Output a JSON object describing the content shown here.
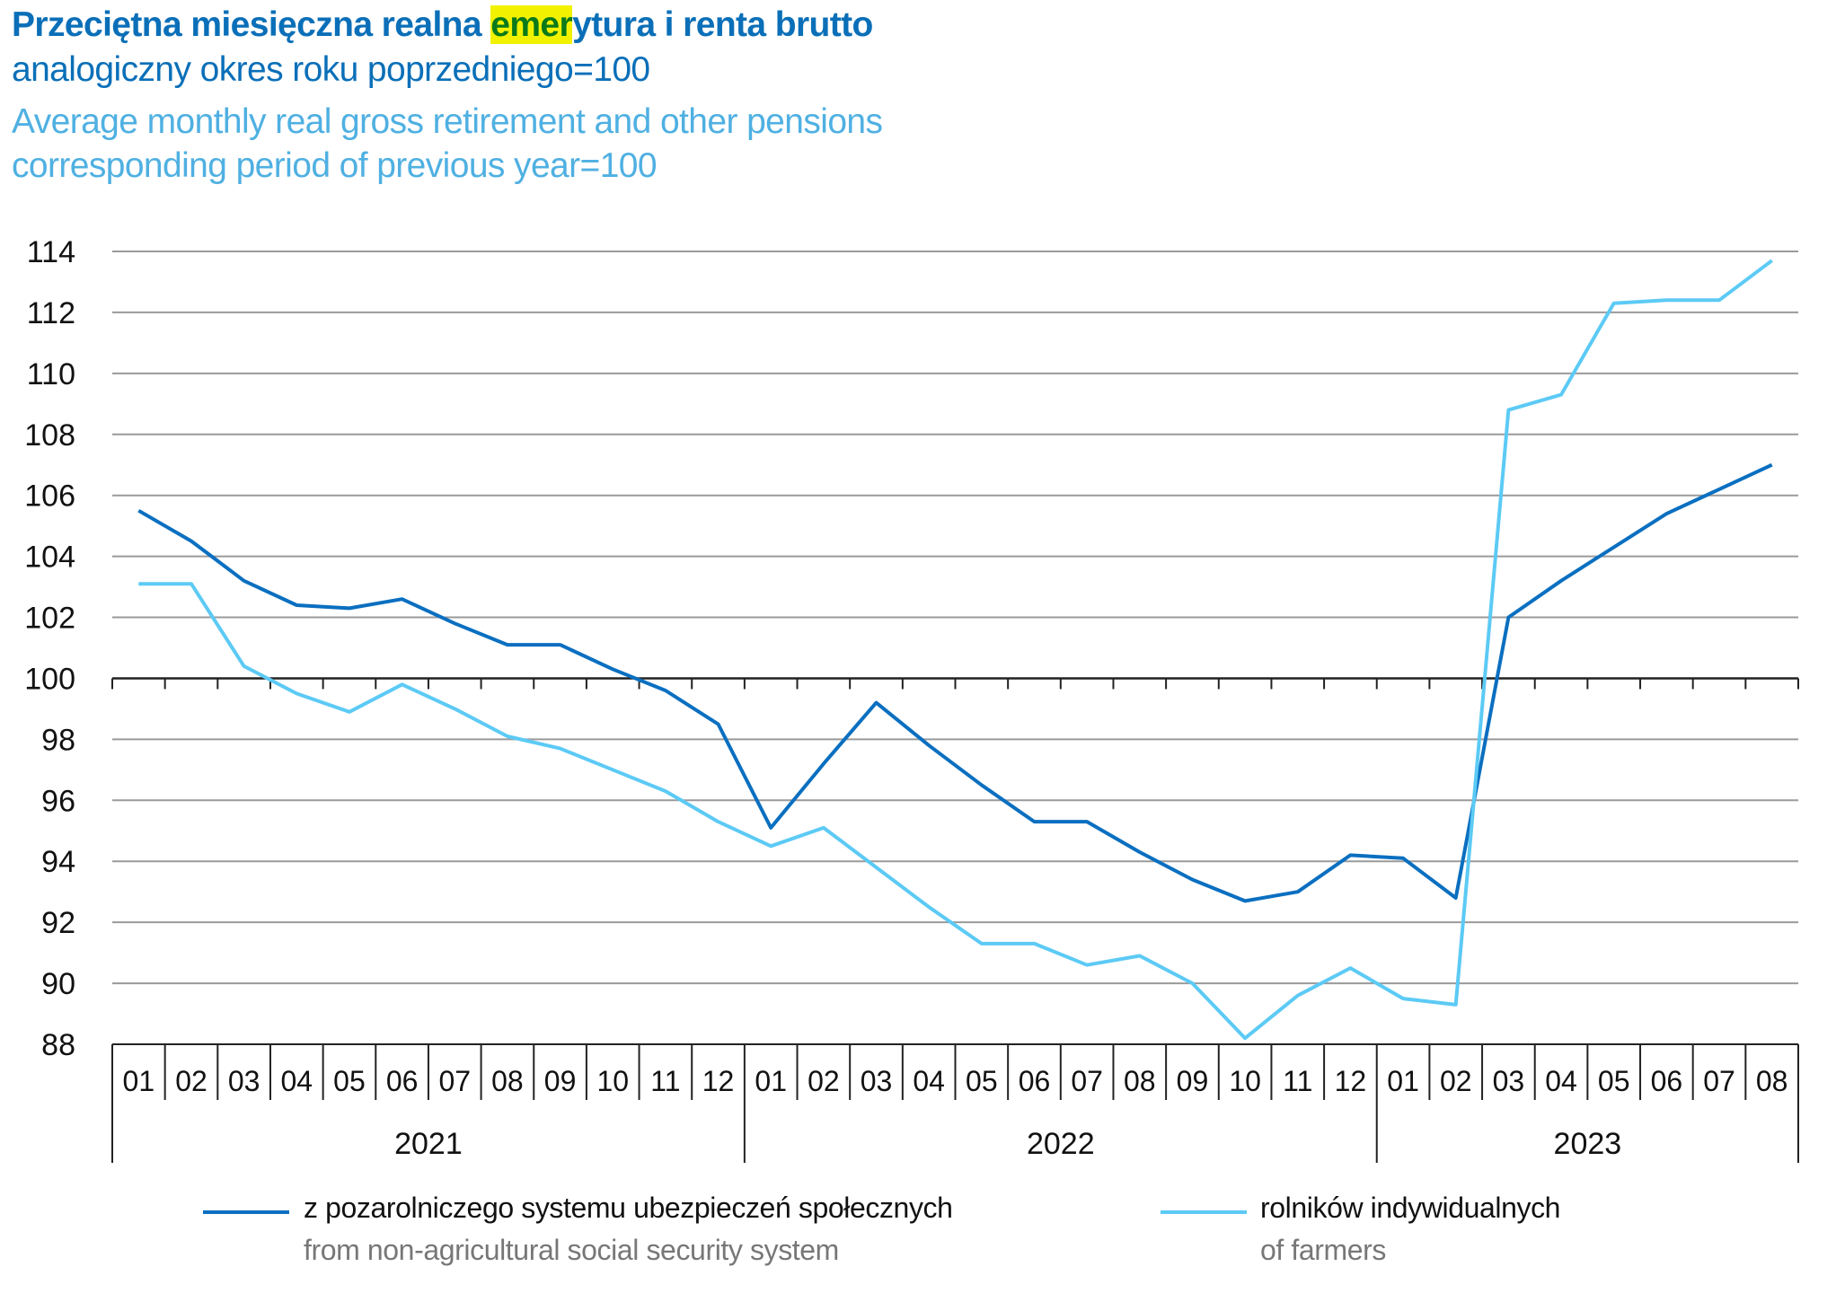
{
  "header": {
    "title_parts": [
      "Przeciętna miesięczna realna ",
      "emer",
      "ytura i renta brutto"
    ],
    "subtitle_pl": "analogiczny okres roku poprzedniego=100",
    "title_en": "Average monthly real gross retirement and other pensions",
    "subtitle_en": "corresponding period of previous year=100",
    "highlight_color": "#f2f200"
  },
  "chart_data": {
    "type": "line",
    "title": "Przeciętna miesięczna realna emerytura i renta brutto",
    "subtitle": "analogiczny okres roku poprzedniego=100",
    "ylim": [
      88,
      114
    ],
    "yticks": [
      88,
      90,
      92,
      94,
      96,
      98,
      100,
      102,
      104,
      106,
      108,
      110,
      112,
      114
    ],
    "baseline": 100,
    "grid": true,
    "legend_position": "bottom",
    "categories": [
      "01",
      "02",
      "03",
      "04",
      "05",
      "06",
      "07",
      "08",
      "09",
      "10",
      "11",
      "12",
      "01",
      "02",
      "03",
      "04",
      "05",
      "06",
      "07",
      "08",
      "09",
      "10",
      "11",
      "12",
      "01",
      "02",
      "03",
      "04",
      "05",
      "06",
      "07",
      "08"
    ],
    "years": [
      {
        "label": "2021",
        "months": 12
      },
      {
        "label": "2022",
        "months": 12
      },
      {
        "label": "2023",
        "months": 8
      }
    ],
    "series": [
      {
        "name": "z pozarolniczego systemu ubezpieczeń społecznych",
        "name_en": "from non-agricultural social security system",
        "color": "#0a6fc0",
        "values": [
          105.5,
          104.5,
          103.2,
          102.4,
          102.3,
          102.6,
          101.8,
          101.1,
          101.1,
          100.3,
          99.6,
          98.5,
          95.1,
          97.2,
          99.2,
          97.8,
          96.5,
          95.3,
          95.3,
          94.3,
          93.4,
          92.7,
          93.0,
          94.2,
          94.1,
          92.8,
          102.0,
          103.2,
          104.3,
          105.4,
          106.2,
          107.0
        ]
      },
      {
        "name": "rolników indywidualnych",
        "name_en": "of farmers",
        "color": "#5ccaf5",
        "values": [
          103.1,
          103.1,
          100.4,
          99.5,
          98.9,
          99.8,
          99.0,
          98.1,
          97.7,
          97.0,
          96.3,
          95.3,
          94.5,
          95.1,
          93.8,
          92.5,
          91.3,
          91.3,
          90.6,
          90.9,
          90.0,
          88.2,
          89.6,
          90.5,
          89.5,
          89.3,
          108.8,
          109.3,
          112.3,
          112.4,
          112.4,
          113.7
        ]
      }
    ]
  }
}
